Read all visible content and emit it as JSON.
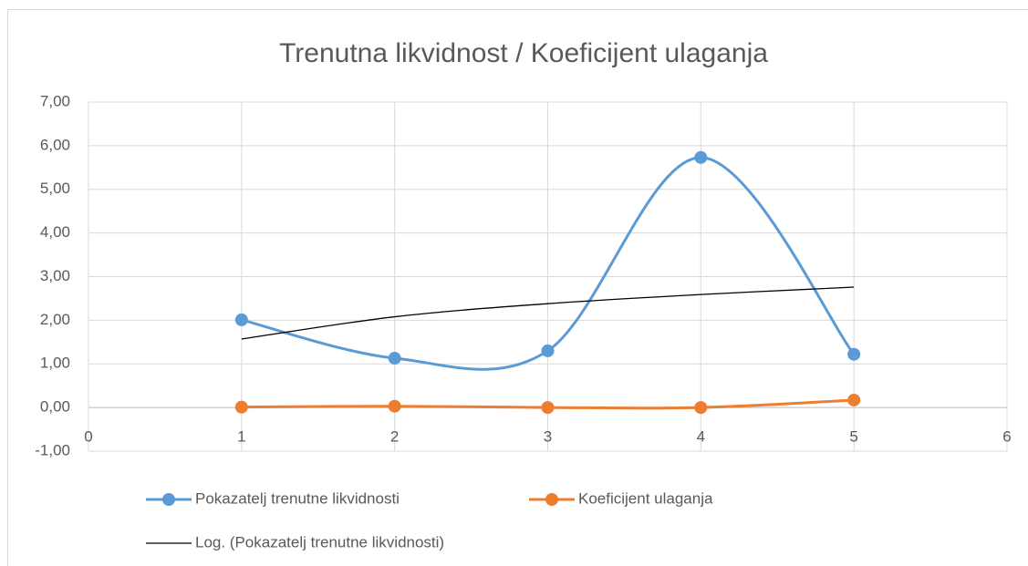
{
  "chart_data": {
    "type": "scatter-smooth",
    "title": "Trenutna likvidnost / Koeficijent ulaganja",
    "x": [
      1,
      2,
      3,
      4,
      5
    ],
    "series": [
      {
        "name": "Pokazatelj trenutne likvidnosti",
        "color": "#5b9bd5",
        "marker": true,
        "values": [
          2.01,
          1.13,
          1.3,
          5.73,
          1.22
        ]
      },
      {
        "name": "Koeficijent ulaganja",
        "color": "#ed7d31",
        "marker": true,
        "values": [
          0.01,
          0.03,
          0.0,
          0.0,
          0.17
        ]
      },
      {
        "name": "Log. (Pokazatelj trenutne likvidnosti)",
        "color": "#000000",
        "marker": false,
        "values": [
          1.57,
          2.08,
          2.38,
          2.59,
          2.76
        ]
      }
    ],
    "xlim": [
      0,
      6
    ],
    "xticks": [
      0,
      1,
      2,
      3,
      4,
      5,
      6
    ],
    "ylim": [
      -1,
      7
    ],
    "yticks": [
      {
        "value": -1,
        "label": "-1,00"
      },
      {
        "value": 0,
        "label": "0,00"
      },
      {
        "value": 1,
        "label": "1,00"
      },
      {
        "value": 2,
        "label": "2,00"
      },
      {
        "value": 3,
        "label": "3,00"
      },
      {
        "value": 4,
        "label": "4,00"
      },
      {
        "value": 5,
        "label": "5,00"
      },
      {
        "value": 6,
        "label": "6,00"
      },
      {
        "value": 7,
        "label": "7,00"
      }
    ],
    "grid": true,
    "legend": "bottom"
  }
}
